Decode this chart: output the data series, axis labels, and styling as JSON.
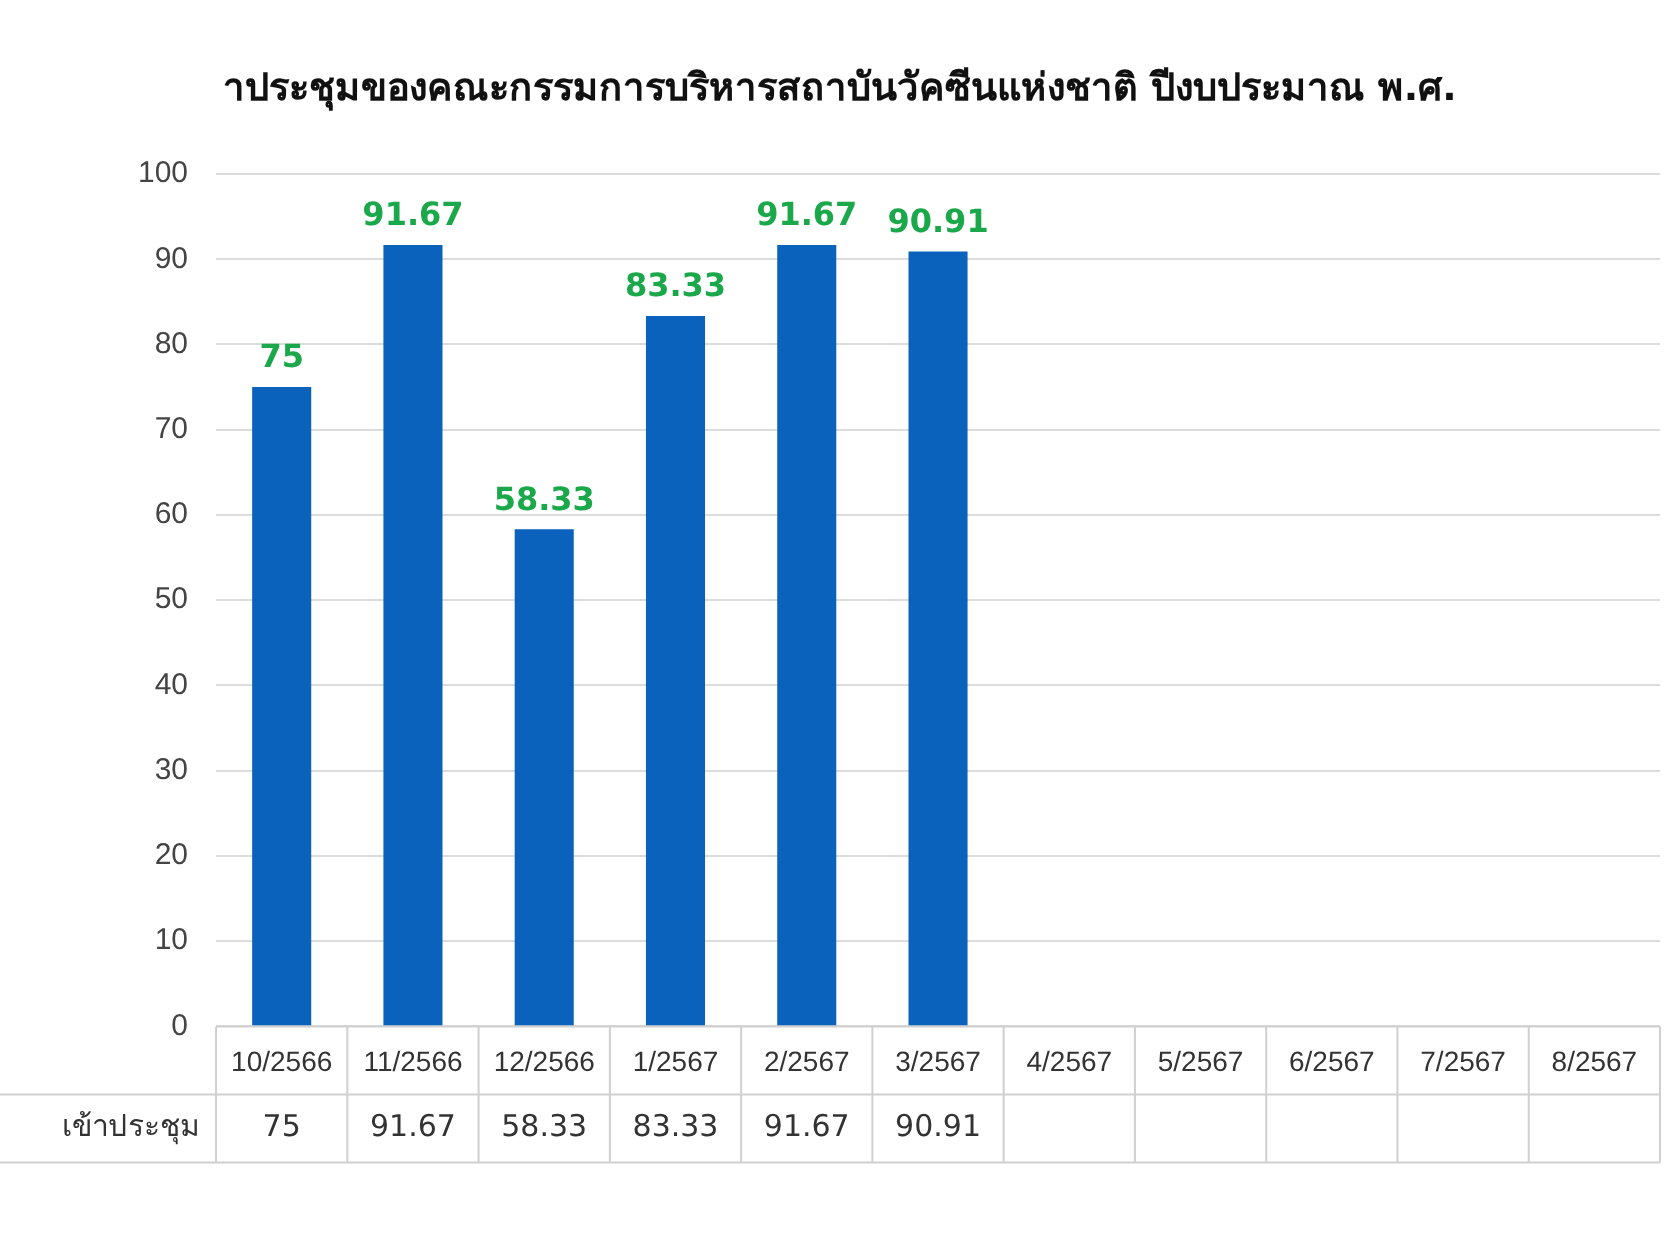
{
  "chart_data": {
    "type": "bar",
    "title": "าประชุมของคณะกรรมการบริหารสถาบันวัคซีนแห่งชาติ ปีงบประมาณ พ.ศ.",
    "categories": [
      "10/2566",
      "11/2566",
      "12/2566",
      "1/2567",
      "2/2567",
      "3/2567",
      "4/2567",
      "5/2567",
      "6/2567",
      "7/2567",
      "8/2567"
    ],
    "series": [
      {
        "name": "เข้าประชุม",
        "color": "#0a62bd",
        "values": [
          75,
          91.67,
          58.33,
          83.33,
          91.67,
          90.91,
          null,
          null,
          null,
          null,
          null
        ],
        "value_labels": [
          "75",
          "91.67",
          "58.33",
          "83.33",
          "91.67",
          "90.91",
          null,
          null,
          null,
          null,
          null
        ]
      }
    ],
    "ylim": [
      0,
      100
    ],
    "yticks": [
      0,
      10,
      20,
      30,
      40,
      50,
      60,
      70,
      80,
      90,
      100
    ],
    "grid": "y",
    "legend": false,
    "annotations": [
      "75",
      "91.67",
      "58.33",
      "83.33",
      "91.67",
      "90.91"
    ]
  }
}
